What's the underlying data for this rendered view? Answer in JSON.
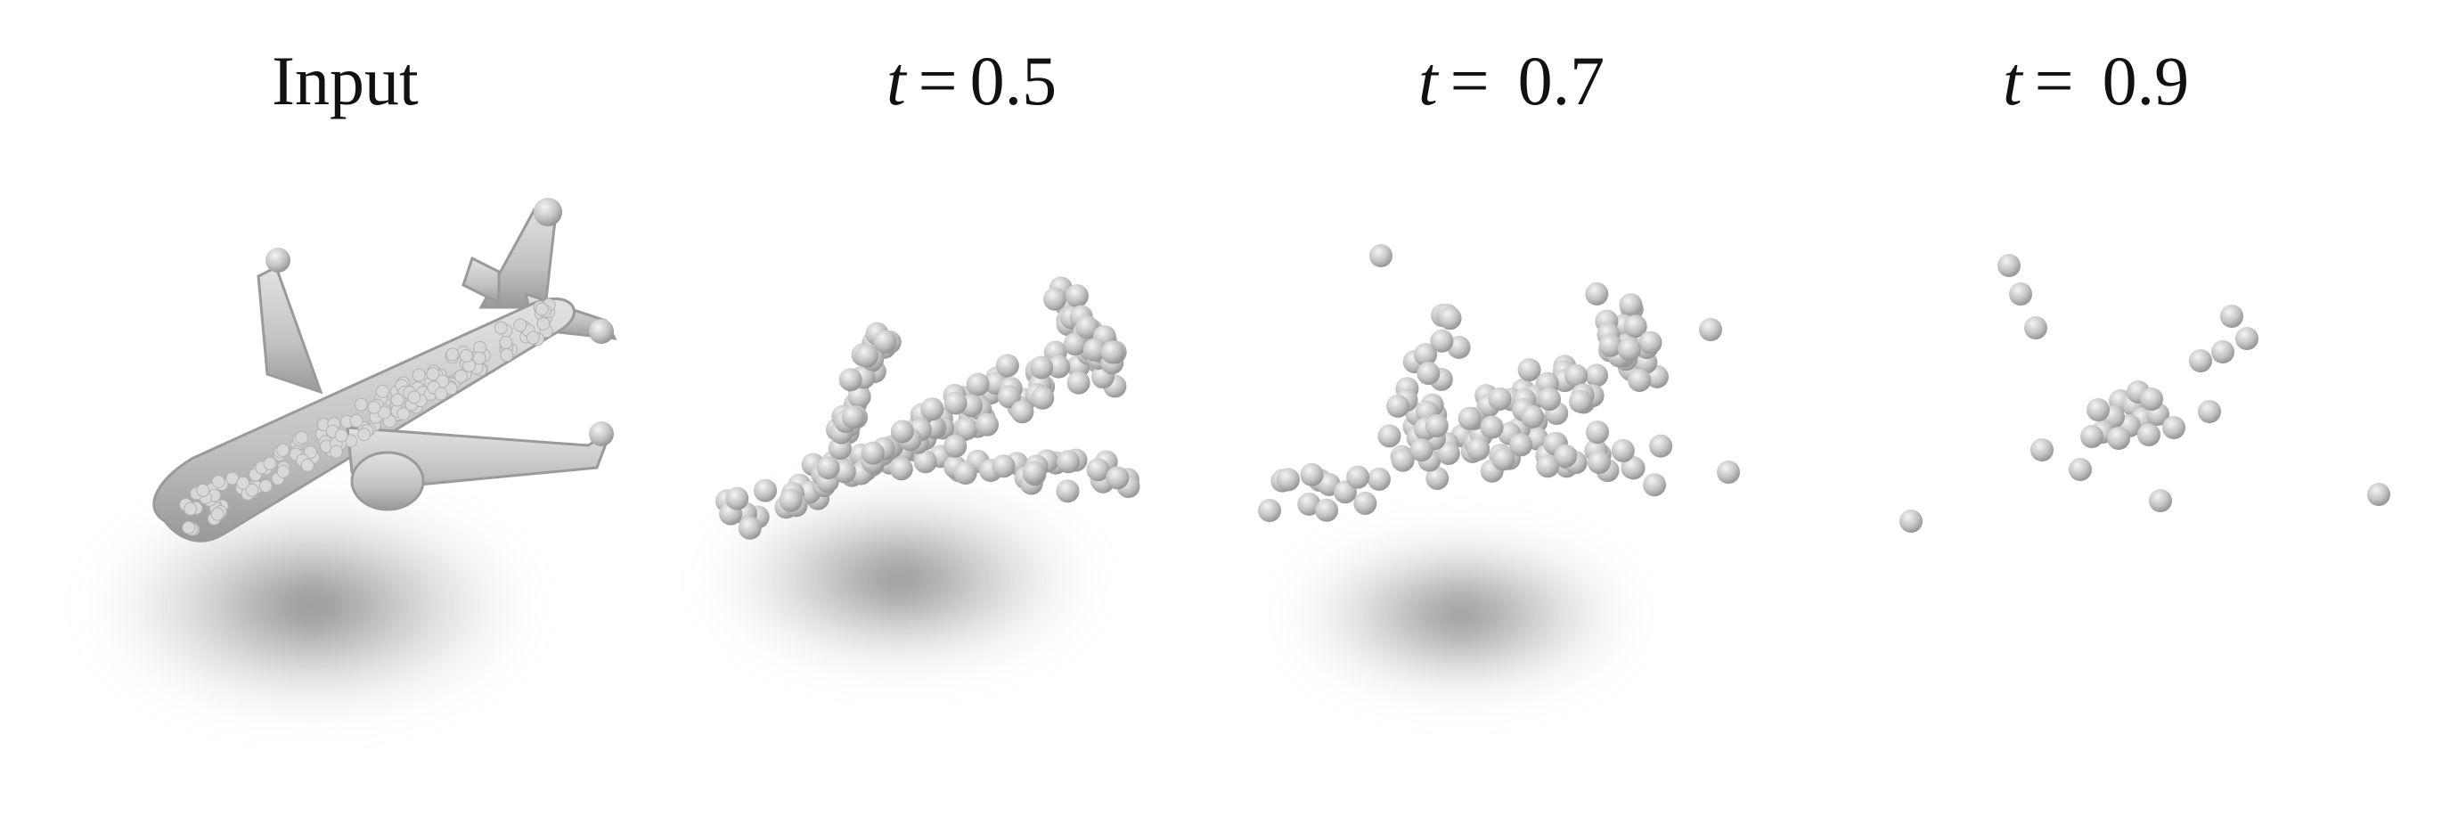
{
  "panels": [
    {
      "id": "input",
      "label_text": "Input",
      "kind": "solid"
    },
    {
      "id": "t05",
      "label_var": "t",
      "label_eq": "=",
      "label_value": "0.5",
      "kind": "spheres",
      "density": "high"
    },
    {
      "id": "t07",
      "label_var": "t",
      "label_eq": "=",
      "label_value": "0.7",
      "kind": "spheres",
      "density": "medium"
    },
    {
      "id": "t09",
      "label_var": "t",
      "label_eq": "=",
      "label_value": "0.9",
      "kind": "spheres",
      "density": "low"
    }
  ],
  "colors": {
    "background": "#ffffff",
    "sphere": "#bdbdbd",
    "sphere_highlight": "#f2f2f2",
    "sphere_shade": "#8e8e8e",
    "shadow": "#6e6e6e",
    "text": "#111111"
  }
}
